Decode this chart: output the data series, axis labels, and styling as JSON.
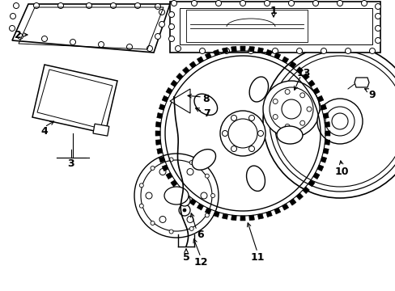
{
  "background_color": "#ffffff",
  "figsize": [
    4.89,
    3.6
  ],
  "dpi": 100,
  "label_fontsize": 9
}
